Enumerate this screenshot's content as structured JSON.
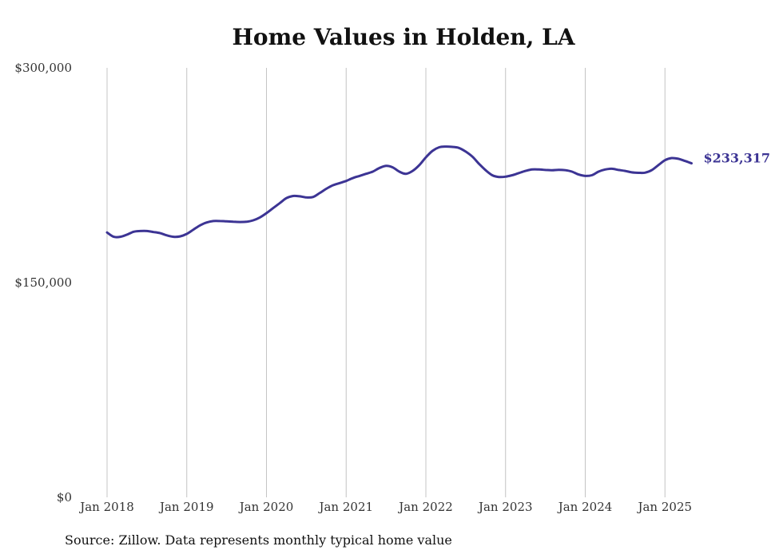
{
  "chart_data": {
    "type": "line",
    "title": "Home Values in Holden, LA",
    "xlabel": "",
    "ylabel": "",
    "source": "Source: Zillow. Data represents monthly typical home value",
    "ylim": [
      0,
      300000
    ],
    "y_ticks": [
      {
        "value": 0,
        "label": "$0"
      },
      {
        "value": 150000,
        "label": "$150,000"
      },
      {
        "value": 300000,
        "label": "$300,000"
      }
    ],
    "x_ticks": [
      {
        "value": "2018-01",
        "label": "Jan 2018"
      },
      {
        "value": "2019-01",
        "label": "Jan 2019"
      },
      {
        "value": "2020-01",
        "label": "Jan 2020"
      },
      {
        "value": "2021-01",
        "label": "Jan 2021"
      },
      {
        "value": "2022-01",
        "label": "Jan 2022"
      },
      {
        "value": "2023-01",
        "label": "Jan 2023"
      },
      {
        "value": "2024-01",
        "label": "Jan 2024"
      },
      {
        "value": "2025-01",
        "label": "Jan 2025"
      }
    ],
    "grid": "vertical",
    "line_color": "#3c3494",
    "end_label": "$233,317",
    "series": [
      {
        "x": [
          "2018-01",
          "2018-02",
          "2018-03",
          "2018-04",
          "2018-05",
          "2018-06",
          "2018-07",
          "2018-08",
          "2018-09",
          "2018-10",
          "2018-11",
          "2018-12",
          "2019-01",
          "2019-02",
          "2019-03",
          "2019-04",
          "2019-05",
          "2019-06",
          "2019-07",
          "2019-08",
          "2019-09",
          "2019-10",
          "2019-11",
          "2019-12",
          "2020-01",
          "2020-02",
          "2020-03",
          "2020-04",
          "2020-05",
          "2020-06",
          "2020-07",
          "2020-08",
          "2020-09",
          "2020-10",
          "2020-11",
          "2020-12",
          "2021-01",
          "2021-02",
          "2021-03",
          "2021-04",
          "2021-05",
          "2021-06",
          "2021-07",
          "2021-08",
          "2021-09",
          "2021-10",
          "2021-11",
          "2021-12",
          "2022-01",
          "2022-02",
          "2022-03",
          "2022-04",
          "2022-05",
          "2022-06",
          "2022-07",
          "2022-08",
          "2022-09",
          "2022-10",
          "2022-11",
          "2022-12",
          "2023-01",
          "2023-02",
          "2023-03",
          "2023-04",
          "2023-05",
          "2023-06",
          "2023-07",
          "2023-08",
          "2023-09",
          "2023-10",
          "2023-11",
          "2023-12",
          "2024-01",
          "2024-02",
          "2024-03",
          "2024-04",
          "2024-05",
          "2024-06",
          "2024-07",
          "2024-08",
          "2024-09",
          "2024-10",
          "2024-11",
          "2024-12",
          "2025-01",
          "2025-02",
          "2025-03",
          "2025-04",
          "2025-05"
        ],
        "values": [
          185000,
          182000,
          182000,
          183500,
          185500,
          186000,
          186000,
          185300,
          184500,
          183000,
          182000,
          182300,
          184000,
          187000,
          190000,
          192000,
          193000,
          193000,
          192800,
          192500,
          192300,
          192500,
          193500,
          195500,
          198500,
          202000,
          205500,
          209000,
          210500,
          210300,
          209500,
          209800,
          212500,
          215500,
          218000,
          219500,
          221000,
          223000,
          224500,
          226000,
          227500,
          230000,
          231500,
          230500,
          227500,
          226000,
          228000,
          232000,
          237500,
          242000,
          244500,
          245000,
          244800,
          244000,
          241500,
          238000,
          233000,
          228500,
          225000,
          223800,
          224000,
          225000,
          226500,
          228000,
          229000,
          229000,
          228700,
          228500,
          228800,
          228500,
          227500,
          225500,
          224500,
          225000,
          227500,
          229000,
          229500,
          228700,
          228000,
          227000,
          226700,
          226800,
          228500,
          232000,
          235500,
          237000,
          236500,
          235000,
          233317
        ]
      }
    ]
  }
}
